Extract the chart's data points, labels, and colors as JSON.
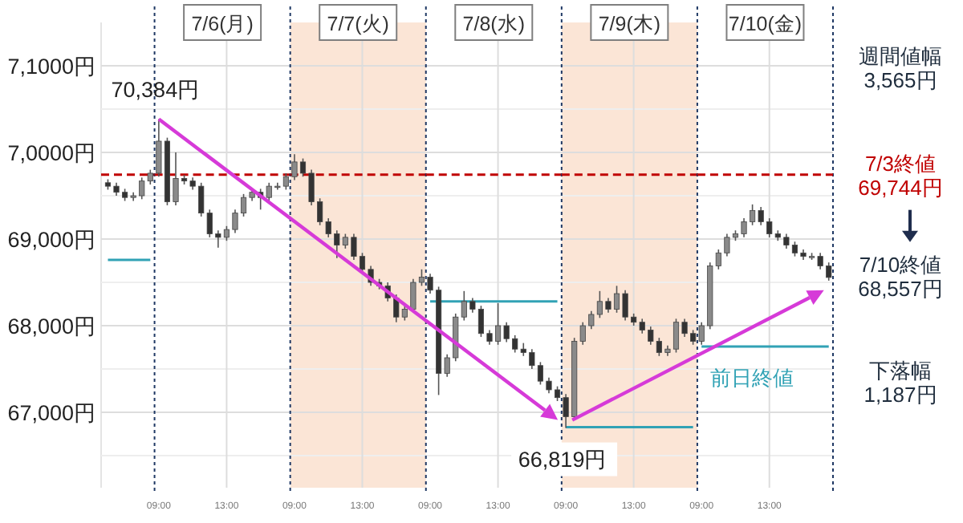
{
  "chart_data": [
    {
      "type": "candlestick",
      "categories": [
        null,
        null,
        null,
        null,
        null,
        null
      ],
      "ohlc": [
        [
          69650,
          69690,
          69570,
          69610
        ],
        [
          69610,
          69650,
          69500,
          69540
        ],
        [
          69540,
          69580,
          69440,
          69480
        ],
        [
          69480,
          69540,
          69440,
          69500
        ],
        [
          69500,
          69710,
          69460,
          69670
        ],
        [
          69670,
          69800,
          69630,
          69760
        ]
      ],
      "series": [
        {
          "type": "line",
          "color": "#31a2b5",
          "values": [
            68760,
            68760,
            68760,
            68760,
            68760,
            68760
          ]
        }
      ],
      "ylim": [
        66130,
        71500
      ],
      "yticks": [
        {
          "value": 66500,
          "label": null
        },
        {
          "value": 67000,
          "label": "67,000円"
        },
        {
          "value": 67500,
          "label": null
        },
        {
          "value": 68000,
          "label": "68,000円"
        },
        {
          "value": 68500,
          "label": null
        },
        {
          "value": 69000,
          "label": "69,000円"
        },
        {
          "value": 69500,
          "label": null
        },
        {
          "value": 70000,
          "label": "7,0000円"
        },
        {
          "value": 70500,
          "label": null
        },
        {
          "value": 71000,
          "label": "7,1000円"
        }
      ],
      "grid": true,
      "tick_labels": "y",
      "ref_lines": [
        {
          "axis": "y",
          "value": 69744,
          "color": "#c00000",
          "line_style": "dashed"
        }
      ]
    },
    {
      "type": "candlestick",
      "title": "7/6(月)",
      "categories": [
        "09:00",
        null,
        null,
        null,
        null,
        null,
        null,
        null,
        "13:00",
        null,
        null,
        null,
        null,
        null,
        null,
        null
      ],
      "ohlc": [
        [
          69760,
          70384,
          69720,
          70130
        ],
        [
          70130,
          70170,
          69390,
          69430
        ],
        [
          69430,
          70000,
          69390,
          69700
        ],
        [
          69700,
          69740,
          69630,
          69670
        ],
        [
          69670,
          69710,
          69570,
          69610
        ],
        [
          69610,
          69650,
          69260,
          69300
        ],
        [
          69300,
          69340,
          69020,
          69060
        ],
        [
          69060,
          69100,
          68900,
          69020
        ],
        [
          69020,
          69150,
          68980,
          69110
        ],
        [
          69110,
          69340,
          69070,
          69300
        ],
        [
          69300,
          69520,
          69260,
          69480
        ],
        [
          69480,
          69580,
          69440,
          69540
        ],
        [
          69540,
          69580,
          69340,
          69480
        ],
        [
          69480,
          69650,
          69440,
          69610
        ],
        [
          69610,
          69650,
          69570,
          69610
        ],
        [
          69610,
          69760,
          69570,
          69720
        ]
      ],
      "ylim": [
        66130,
        71500
      ],
      "grid": true,
      "tick_labels": "x",
      "ref_lines": [
        {
          "axis": "y",
          "value": 69744,
          "color": "#c00000",
          "line_style": "dashed"
        }
      ],
      "annotations": [
        {
          "text": "70,384円",
          "x": "09:00",
          "y": 70384
        }
      ]
    },
    {
      "type": "candlestick",
      "title": "7/7(火)",
      "categories": [
        "09:00",
        null,
        null,
        null,
        null,
        null,
        null,
        null,
        "13:00",
        null,
        null,
        null,
        null,
        null,
        null,
        null
      ],
      "ohlc": [
        [
          69720,
          69980,
          69680,
          69890
        ],
        [
          69890,
          69930,
          69720,
          69760
        ],
        [
          69760,
          69800,
          69390,
          69430
        ],
        [
          69430,
          69470,
          69160,
          69200
        ],
        [
          69200,
          69240,
          69020,
          69060
        ],
        [
          69060,
          69100,
          68780,
          68930
        ],
        [
          68930,
          69060,
          68890,
          69020
        ],
        [
          69020,
          69060,
          68760,
          68800
        ],
        [
          68800,
          68840,
          68610,
          68650
        ],
        [
          68650,
          68690,
          68460,
          68500
        ],
        [
          68500,
          68540,
          68420,
          68460
        ],
        [
          68460,
          68500,
          68280,
          68320
        ],
        [
          68320,
          68360,
          68040,
          68100
        ],
        [
          68100,
          68230,
          68060,
          68190
        ],
        [
          68190,
          68540,
          68150,
          68500
        ],
        [
          68500,
          68650,
          68460,
          68560
        ]
      ],
      "ylim": [
        66130,
        71500
      ],
      "grid": true,
      "tick_labels": "x",
      "bands": [
        {
          "axis": "y",
          "from": 66130,
          "to": 71500,
          "color": "#fbe5d6"
        }
      ],
      "ref_lines": [
        {
          "axis": "y",
          "value": 69744,
          "color": "#c00000",
          "line_style": "dashed"
        }
      ]
    },
    {
      "type": "candlestick",
      "title": "7/8(水)",
      "categories": [
        "09:00",
        null,
        null,
        null,
        null,
        null,
        null,
        null,
        "13:00",
        null,
        null,
        null,
        null,
        null,
        null,
        null
      ],
      "ohlc": [
        [
          68560,
          68600,
          68370,
          68410
        ],
        [
          68410,
          68450,
          67200,
          67450
        ],
        [
          67450,
          67670,
          67410,
          67630
        ],
        [
          67630,
          68140,
          67590,
          68100
        ],
        [
          68100,
          68400,
          68060,
          68280
        ],
        [
          68280,
          68320,
          68150,
          68190
        ],
        [
          68190,
          68230,
          67870,
          67910
        ],
        [
          67910,
          67950,
          67780,
          67820
        ],
        [
          67820,
          68260,
          67780,
          68000
        ],
        [
          68000,
          68040,
          67810,
          67850
        ],
        [
          67850,
          67890,
          67690,
          67730
        ],
        [
          67730,
          67800,
          67650,
          67690
        ],
        [
          67690,
          67730,
          67500,
          67540
        ],
        [
          67540,
          67580,
          67320,
          67360
        ],
        [
          67360,
          67400,
          67220,
          67260
        ],
        [
          67260,
          67300,
          67130,
          67170
        ]
      ],
      "series": [
        {
          "type": "line",
          "color": "#31a2b5",
          "values": [
            68280,
            68280,
            68280,
            68280,
            68280,
            68280,
            68280,
            68280,
            68280,
            68280,
            68280,
            68280,
            68280,
            68280,
            68280,
            68280
          ]
        }
      ],
      "ylim": [
        66130,
        71500
      ],
      "grid": true,
      "tick_labels": "x",
      "ref_lines": [
        {
          "axis": "y",
          "value": 69744,
          "color": "#c00000",
          "line_style": "dashed"
        }
      ]
    },
    {
      "type": "candlestick",
      "title": "7/9(木)",
      "categories": [
        "09:00",
        null,
        null,
        null,
        null,
        null,
        null,
        null,
        "13:00",
        null,
        null,
        null,
        null,
        null,
        null,
        null
      ],
      "ohlc": [
        [
          67170,
          67210,
          66819,
          66950
        ],
        [
          66950,
          67860,
          66910,
          67820
        ],
        [
          67820,
          68040,
          67780,
          68000
        ],
        [
          68000,
          68170,
          67960,
          68130
        ],
        [
          68130,
          68400,
          68090,
          68280
        ],
        [
          68280,
          68320,
          68150,
          68190
        ],
        [
          68190,
          68460,
          68150,
          68370
        ],
        [
          68370,
          68410,
          68060,
          68100
        ],
        [
          68100,
          68140,
          68000,
          68040
        ],
        [
          68040,
          68080,
          67910,
          67950
        ],
        [
          67950,
          67990,
          67780,
          67820
        ],
        [
          67820,
          67860,
          67650,
          67690
        ],
        [
          67690,
          67770,
          67650,
          67730
        ],
        [
          67730,
          68080,
          67690,
          68040
        ],
        [
          68040,
          68080,
          67870,
          67910
        ],
        [
          67910,
          67950,
          67780,
          67820
        ]
      ],
      "series": [
        {
          "type": "line",
          "color": "#31a2b5",
          "values": [
            66830,
            66830,
            66830,
            66830,
            66830,
            66830,
            66830,
            66830,
            66830,
            66830,
            66830,
            66830,
            66830,
            66830,
            66830,
            66830
          ]
        }
      ],
      "ylim": [
        66130,
        71500
      ],
      "grid": true,
      "tick_labels": "x",
      "bands": [
        {
          "axis": "y",
          "from": 66130,
          "to": 71500,
          "color": "#fbe5d6"
        }
      ],
      "ref_lines": [
        {
          "axis": "y",
          "value": 69744,
          "color": "#c00000",
          "line_style": "dashed"
        }
      ],
      "annotations": [
        {
          "text": "66,819円",
          "x": "09:00",
          "y": 66819
        }
      ]
    },
    {
      "type": "candlestick",
      "title": "7/10(金)",
      "categories": [
        "09:00",
        null,
        null,
        null,
        null,
        null,
        null,
        null,
        "13:00",
        null,
        null,
        null,
        null,
        null,
        null,
        null
      ],
      "ohlc": [
        [
          67820,
          68040,
          67780,
          68000
        ],
        [
          68000,
          68730,
          67960,
          68690
        ],
        [
          68690,
          68880,
          68650,
          68840
        ],
        [
          68840,
          69060,
          68800,
          69020
        ],
        [
          69020,
          69100,
          68980,
          69060
        ],
        [
          69060,
          69240,
          69020,
          69200
        ],
        [
          69200,
          69400,
          69160,
          69330
        ],
        [
          69330,
          69370,
          69160,
          69200
        ],
        [
          69200,
          69240,
          69020,
          69060
        ],
        [
          69060,
          69100,
          68980,
          69020
        ],
        [
          69020,
          69060,
          68890,
          68930
        ],
        [
          68930,
          68970,
          68800,
          68840
        ],
        [
          68840,
          68880,
          68760,
          68800
        ],
        [
          68800,
          68840,
          68760,
          68800
        ],
        [
          68800,
          68840,
          68650,
          68690
        ],
        [
          68690,
          68730,
          68520,
          68557
        ]
      ],
      "series": [
        {
          "type": "line",
          "name": "前日終値",
          "color": "#31a2b5",
          "values": [
            67760,
            67760,
            67760,
            67760,
            67760,
            67760,
            67760,
            67760,
            67760,
            67760,
            67760,
            67760,
            67760,
            67760,
            67760,
            67760
          ]
        }
      ],
      "ylim": [
        66130,
        71500
      ],
      "grid": true,
      "tick_labels": "x",
      "ref_lines": [
        {
          "axis": "y",
          "value": 69744,
          "color": "#c00000",
          "line_style": "dashed",
          "label": "7/3終値\n69,744円"
        }
      ],
      "annotations": [
        "週間値幅\n3,565円",
        "7/10終値\n68,557円",
        "下落幅\n1,187円"
      ]
    }
  ]
}
